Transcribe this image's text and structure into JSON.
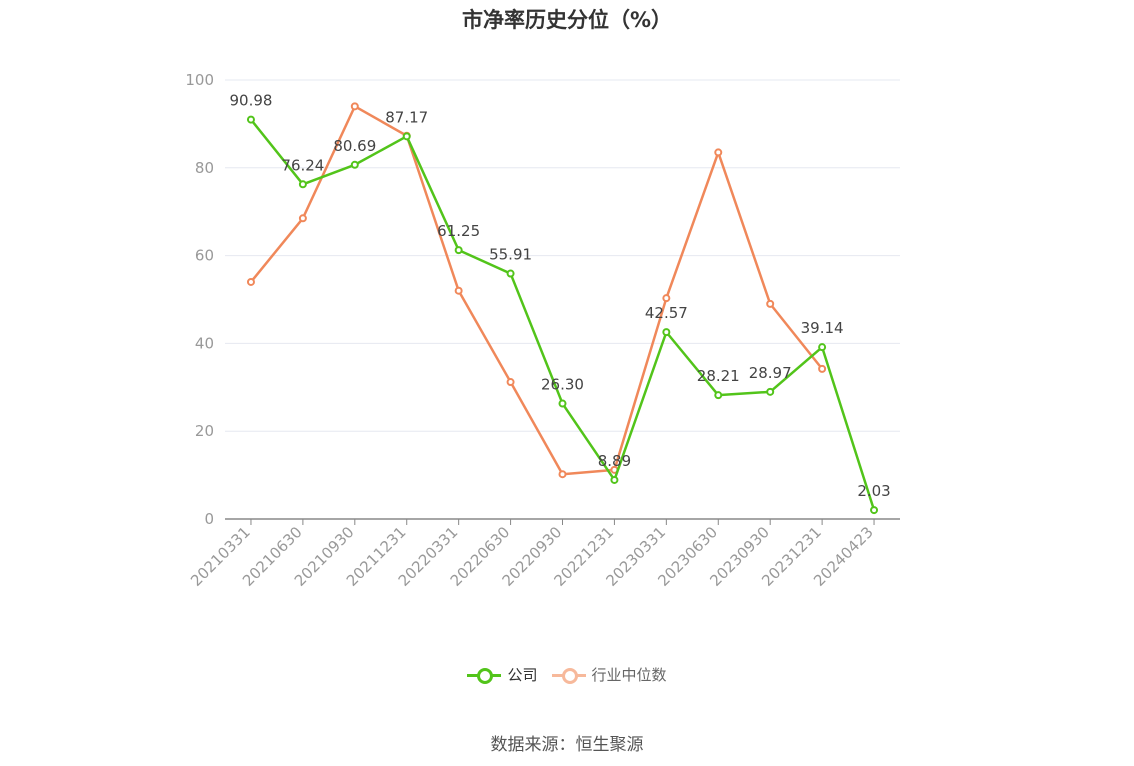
{
  "title": "市净率历史分位（%）",
  "source": "数据来源：恒生聚源",
  "colors": {
    "company": "#52c41a",
    "industry": "#f0885a",
    "grid": "#e6e8f0",
    "axis": "#999999"
  },
  "legend": [
    {
      "label": "公司",
      "color": "#52c41a"
    },
    {
      "label": "行业中位数",
      "color": "#f7b99b"
    }
  ],
  "chart_data": {
    "type": "line",
    "categories": [
      "20210331",
      "20210630",
      "20210930",
      "20211231",
      "20220331",
      "20220630",
      "20220930",
      "20221231",
      "20230331",
      "20230630",
      "20230930",
      "20231231",
      "20240423"
    ],
    "ylim": [
      0,
      100
    ],
    "yticks": [
      0,
      20,
      40,
      60,
      80,
      100
    ],
    "grid": true,
    "legend_position": "bottom",
    "series": [
      {
        "name": "公司",
        "color": "#52c41a",
        "values": [
          90.98,
          76.24,
          80.69,
          87.17,
          61.25,
          55.91,
          26.3,
          8.89,
          42.57,
          28.21,
          28.97,
          39.14,
          2.03
        ],
        "labels": [
          "90.98",
          "76.24",
          "80.69",
          "87.17",
          "61.25",
          "55.91",
          "26.30",
          "8.89",
          "42.57",
          "28.21",
          "28.97",
          "39.14",
          "2.03"
        ]
      },
      {
        "name": "行业中位数",
        "color": "#f0885a",
        "values": [
          54.0,
          68.5,
          94.0,
          87.3,
          52.0,
          31.2,
          10.2,
          11.2,
          50.3,
          83.5,
          49.0,
          34.2,
          null
        ]
      }
    ]
  }
}
